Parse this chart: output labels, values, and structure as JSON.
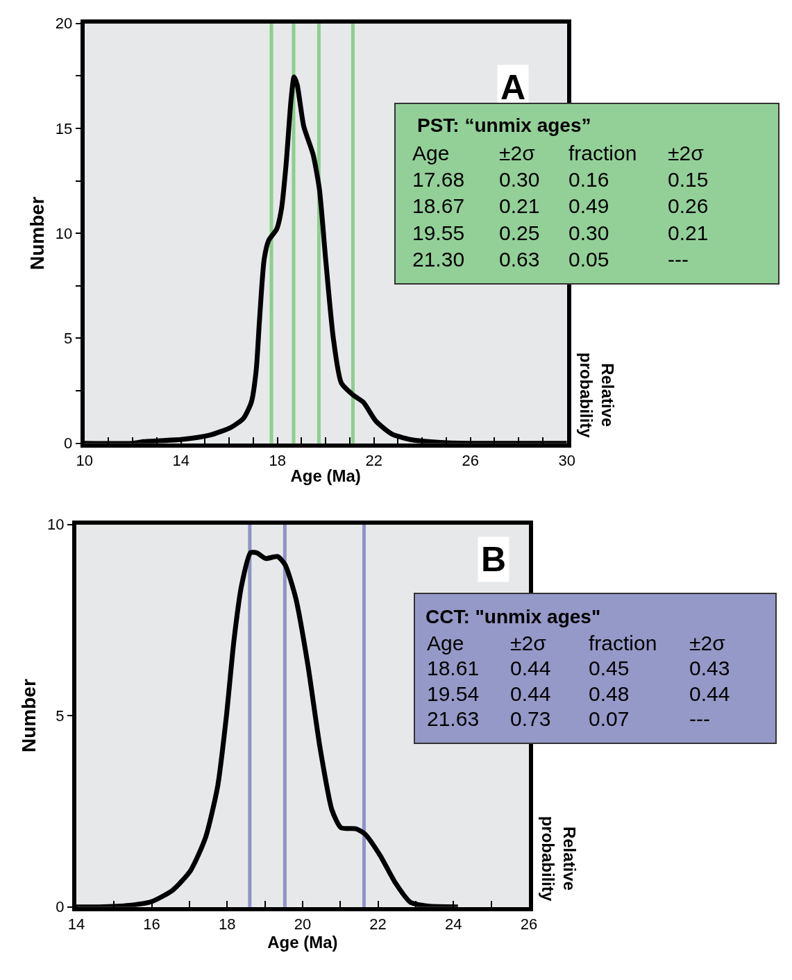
{
  "chart_data": [
    {
      "type": "line",
      "xlabel": "Age (Ma)",
      "ylabel": "Number",
      "y2label": "Relative probability",
      "series": [
        {
          "color": "#000000",
          "x": [
            10,
            12,
            12.44,
            14.0,
            15.17,
            16.08,
            16.6,
            16.92,
            17.12,
            17.25,
            17.45,
            17.64,
            17.97,
            18.17,
            18.36,
            18.56,
            18.69,
            18.82,
            19.09,
            19.48,
            19.74,
            20.0,
            20.32,
            20.65,
            21.17,
            21.56,
            22.08,
            22.73,
            23.5,
            24.65,
            25.95,
            30
          ],
          "values": [
            0,
            0,
            0.08,
            0.18,
            0.38,
            0.76,
            1.2,
            1.96,
            3.47,
            5.74,
            8.76,
            9.67,
            10.2,
            11.18,
            13.3,
            16.3,
            17.45,
            17.07,
            15.1,
            13.75,
            12.1,
            8.76,
            4.98,
            2.87,
            2.27,
            1.96,
            1.06,
            0.45,
            0.18,
            0.05,
            0,
            0
          ]
        }
      ],
      "xlim": [
        10,
        30
      ],
      "xticks": [
        10,
        {
          "value": 11,
          "label": null
        },
        {
          "value": 12,
          "label": null
        },
        {
          "value": 13,
          "label": null
        },
        14,
        {
          "value": 15,
          "label": null
        },
        {
          "value": 16,
          "label": null
        },
        {
          "value": 17,
          "label": null
        },
        18,
        {
          "value": 19,
          "label": null
        },
        {
          "value": 20,
          "label": null
        },
        {
          "value": 21,
          "label": null
        },
        22,
        {
          "value": 23,
          "label": null
        },
        {
          "value": 24,
          "label": null
        },
        {
          "value": 25,
          "label": null
        },
        26,
        {
          "value": 27,
          "label": null
        },
        {
          "value": 28,
          "label": null
        },
        {
          "value": 29,
          "label": null
        },
        30
      ],
      "ylim": [
        0,
        20
      ],
      "yticks": [
        0,
        {
          "value": 2.5,
          "label": null
        },
        5,
        {
          "value": 7.5,
          "label": null
        },
        10,
        {
          "value": 12.5,
          "label": null
        },
        15,
        {
          "value": 17.5,
          "label": null
        },
        20
      ],
      "line_style": "solid",
      "ref_lines": [
        {
          "axis": "x",
          "value": 17.75,
          "color": "#8ccf8c"
        },
        {
          "axis": "x",
          "value": 18.67,
          "color": "#8ccf8c"
        },
        {
          "axis": "x",
          "value": 19.72,
          "color": "#8ccf8c"
        },
        {
          "axis": "x",
          "value": 21.13,
          "color": "#8ccf8c"
        }
      ],
      "annotations": [
        "A",
        "PST: “unmix ages”",
        "Age",
        "±2σ",
        "fraction",
        "±2σ",
        "17.68",
        "0.30",
        "0.16",
        "0.15",
        "18.67",
        "0.21",
        "0.49",
        "0.26",
        "19.55",
        "0.25",
        "0.30",
        "0.21",
        "21.30",
        "0.63",
        "0.05",
        "---"
      ]
    },
    {
      "type": "line",
      "xlabel": "Age (Ma)",
      "ylabel": "Number",
      "y2label": "Relative probability",
      "series": [
        {
          "color": "#000000",
          "x": [
            14,
            14.6,
            15.4,
            16.0,
            16.56,
            17.03,
            17.43,
            17.75,
            17.98,
            18.18,
            18.38,
            18.62,
            18.78,
            19.02,
            19.34,
            19.54,
            19.82,
            20.14,
            20.46,
            20.78,
            21.02,
            21.42,
            21.66,
            22.06,
            22.46,
            22.86,
            23.33,
            24.12
          ],
          "values": [
            0,
            0,
            0.04,
            0.14,
            0.44,
            0.95,
            1.82,
            3.16,
            4.98,
            6.96,
            8.39,
            9.26,
            9.26,
            9.11,
            9.16,
            8.94,
            8.07,
            6.33,
            4.18,
            2.53,
            2.07,
            2.04,
            1.9,
            1.34,
            0.63,
            0.12,
            0.02,
            0
          ]
        }
      ],
      "xlim": [
        14,
        26
      ],
      "xticks": [
        14,
        {
          "value": 15,
          "label": null
        },
        16,
        {
          "value": 17,
          "label": null
        },
        18,
        {
          "value": 19,
          "label": null
        },
        20,
        {
          "value": 21,
          "label": null
        },
        22,
        {
          "value": 23,
          "label": null
        },
        24,
        {
          "value": 25,
          "label": null
        },
        26
      ],
      "ylim": [
        0,
        10
      ],
      "yticks": [
        0,
        5,
        10
      ],
      "line_style": "solid",
      "ref_lines": [
        {
          "axis": "x",
          "value": 18.6,
          "color": "#8f93c4"
        },
        {
          "axis": "x",
          "value": 19.53,
          "color": "#8f93c4"
        },
        {
          "axis": "x",
          "value": 21.63,
          "color": "#8f93c4"
        }
      ],
      "annotations": [
        "B",
        "CCT: \"unmix ages\"",
        "Age",
        "±2σ",
        "fraction",
        "±2σ",
        "18.61",
        "0.44",
        "0.45",
        "0.43",
        "19.54",
        "0.44",
        "0.48",
        "0.44",
        "21.63",
        "0.73",
        "0.07",
        "---"
      ]
    }
  ]
}
